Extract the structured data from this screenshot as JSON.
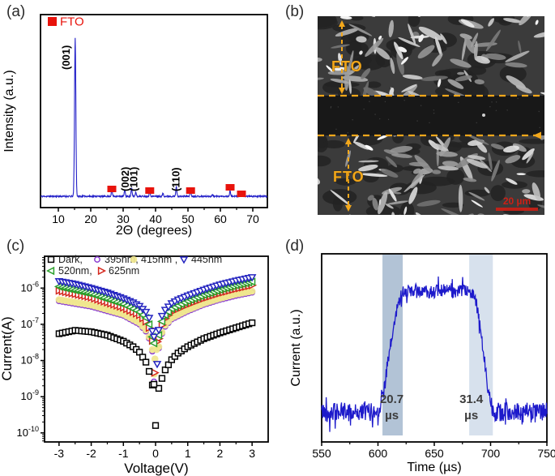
{
  "panels": {
    "a": {
      "label": "(a)"
    },
    "b": {
      "label": "(b)"
    },
    "c": {
      "label": "(c)"
    },
    "d": {
      "label": "(d)"
    }
  },
  "colors": {
    "axis": "#000000",
    "xrd_line": "#2320c8",
    "fto_red": "#e8130c",
    "orange": "#f2a71b",
    "scalebar_red": "#cc2016",
    "trace_blue": "#1d1acb",
    "annotation_text": "#3c3c3c",
    "sem_bg": "#1b1b1b",
    "sem_band": "#3b3b3b"
  },
  "chart_data": [
    {
      "id": "a",
      "type": "line",
      "panel": "(a)",
      "xlabel": "2Θ (degrees)",
      "ylabel": "Intensity (a.u.)",
      "xlim": [
        4.5,
        74.5
      ],
      "xticks": [
        10,
        20,
        30,
        40,
        50,
        60,
        70
      ],
      "xminor_step": 5,
      "legend": [
        {
          "label": "FTO",
          "marker": "square-filled",
          "color": "#e8130c"
        }
      ],
      "peaks": [
        {
          "two_theta": 15.2,
          "rel_intensity": 1.0,
          "label": "(001)",
          "label_dx": -7
        },
        {
          "two_theta": 26.5,
          "rel_intensity": 0.045,
          "phase": "FTO"
        },
        {
          "two_theta": 30.5,
          "rel_intensity": 0.04,
          "label": "(002)",
          "label_dx": 5
        },
        {
          "two_theta": 32.6,
          "rel_intensity": 0.05,
          "label": "(101)",
          "label_dx": 7
        },
        {
          "two_theta": 33.9,
          "rel_intensity": 0.028
        },
        {
          "two_theta": 38.2,
          "rel_intensity": 0.04,
          "phase": "FTO"
        },
        {
          "two_theta": 42.3,
          "rel_intensity": 0.02
        },
        {
          "two_theta": 46.4,
          "rel_intensity": 0.062,
          "label": "(110)",
          "label_dx": 4
        },
        {
          "two_theta": 50.8,
          "rel_intensity": 0.038,
          "phase": "FTO"
        },
        {
          "two_theta": 57.6,
          "rel_intensity": 0.012
        },
        {
          "two_theta": 63.0,
          "rel_intensity": 0.035,
          "phase": "FTO"
        },
        {
          "two_theta": 66.5,
          "rel_intensity": 0.022,
          "phase": "FTO"
        }
      ],
      "fto_markers": [
        {
          "x": 26.5,
          "dy": 2
        },
        {
          "x": 38.2,
          "dy": 4
        },
        {
          "x": 50.8,
          "dy": 4
        },
        {
          "x": 63.0,
          "dy": 0
        },
        {
          "x": 66.5,
          "dy": 8
        }
      ]
    },
    {
      "id": "b",
      "type": "image",
      "panel": "(b)",
      "description": "SEM micrograph of two FTO electrodes separated by a dark channel gap",
      "annotations": {
        "region_labels": [
          "FTO",
          "FTO"
        ],
        "scale_bar": "20 µm"
      }
    },
    {
      "id": "c",
      "type": "scatter",
      "panel": "(c)",
      "xlabel": "Voltage(V)",
      "ylabel": "Current(A)",
      "xlim": [
        -3.45,
        3.5
      ],
      "xticks": [
        -3,
        -2,
        -1,
        0,
        1,
        2,
        3
      ],
      "xminor_step": 0.5,
      "ylog": true,
      "ylim_exp": [
        -10.25,
        -5.12
      ],
      "ytick_exponents": [
        -6,
        -7,
        -8,
        -9,
        -10
      ],
      "legend_rows": [
        [
          {
            "label": "Dark,",
            "marker": "square",
            "color": "#000000"
          },
          {
            "label": "395nm,",
            "marker": "circle",
            "color": "#8b3fd1"
          },
          {
            "label": "415nm ,",
            "marker": "circle-filled",
            "color": "#f0e78e"
          },
          {
            "label": "445nm",
            "marker": "tri-down",
            "color": "#2525c0"
          }
        ],
        [
          {
            "label": "520nm,",
            "marker": "tri-left",
            "color": "#2ca02c"
          },
          {
            "label": "625nm",
            "marker": "tri-right",
            "color": "#d5271d"
          }
        ]
      ],
      "marker_step_v": 0.1,
      "series": [
        {
          "name": "395nm",
          "marker": "circle",
          "color": "#8b3fd1",
          "anchors": [
            [
              -3,
              4.4e-07
            ],
            [
              -2,
              3.1e-07
            ],
            [
              -1,
              1.75e-07
            ],
            [
              -0.5,
              1e-07
            ],
            [
              -0.3,
              6.4e-08
            ],
            [
              -0.2,
              4.1e-08
            ],
            [
              -0.1,
              1.8e-08
            ],
            [
              0.1,
              2.2e-08
            ],
            [
              0.2,
              5.5e-08
            ],
            [
              0.3,
              8.7e-08
            ],
            [
              0.5,
              1.38e-07
            ],
            [
              1,
              2.3e-07
            ],
            [
              1.5,
              3.5e-07
            ],
            [
              2,
              4.8e-07
            ],
            [
              2.5,
              6.2e-07
            ],
            [
              3,
              7.6e-07
            ]
          ],
          "dip_points": [
            [
              -0.05,
              2.6e-09
            ]
          ]
        },
        {
          "name": "415nm",
          "marker": "circle-filled",
          "color": "#f0e78e",
          "anchors": [
            [
              -3,
              4.8e-07
            ],
            [
              -2,
              3.4e-07
            ],
            [
              -1,
              1.9e-07
            ],
            [
              -0.5,
              1.1e-07
            ],
            [
              -0.3,
              7e-08
            ],
            [
              -0.2,
              4.5e-08
            ],
            [
              -0.1,
              2e-08
            ],
            [
              0.1,
              2.4e-08
            ],
            [
              0.2,
              6e-08
            ],
            [
              0.3,
              9.5e-08
            ],
            [
              0.5,
              1.5e-07
            ],
            [
              1,
              2.5e-07
            ],
            [
              1.5,
              3.8e-07
            ],
            [
              2,
              5.2e-07
            ],
            [
              2.5,
              6.8e-07
            ],
            [
              3,
              8.2e-07
            ]
          ],
          "dip_points": [
            [
              -0.04,
              4.2e-09
            ],
            [
              -0.02,
              1.1e-08
            ],
            [
              0.03,
              2e-08
            ]
          ]
        },
        {
          "name": "625nm",
          "marker": "tri-right",
          "color": "#d5271d",
          "anchors": [
            [
              -3,
              8.5e-07
            ],
            [
              -2,
              5.5e-07
            ],
            [
              -1,
              2.9e-07
            ],
            [
              -0.5,
              1.8e-07
            ],
            [
              -0.3,
              1.2e-07
            ],
            [
              -0.2,
              8e-08
            ],
            [
              -0.1,
              3.5e-08
            ],
            [
              0.1,
              4e-08
            ],
            [
              0.2,
              9.5e-08
            ],
            [
              0.3,
              1.45e-07
            ],
            [
              0.5,
              2.2e-07
            ],
            [
              1,
              3.5e-07
            ],
            [
              1.5,
              5.2e-07
            ],
            [
              2,
              7.2e-07
            ],
            [
              2.5,
              9.5e-07
            ],
            [
              3,
              1.2e-06
            ]
          ],
          "dip_points": [
            [
              -0.03,
              4.6e-09
            ],
            [
              0.05,
              3.3e-08
            ]
          ]
        },
        {
          "name": "520nm",
          "marker": "tri-left",
          "color": "#2ca02c",
          "anchors": [
            [
              -3,
              1.1e-06
            ],
            [
              -2,
              7e-07
            ],
            [
              -1,
              3.6e-07
            ],
            [
              -0.5,
              2.2e-07
            ],
            [
              -0.3,
              1.5e-07
            ],
            [
              -0.2,
              1e-07
            ],
            [
              -0.1,
              4.5e-08
            ],
            [
              0.1,
              5e-08
            ],
            [
              0.2,
              1.2e-07
            ],
            [
              0.3,
              1.8e-07
            ],
            [
              0.5,
              2.7e-07
            ],
            [
              1,
              4.4e-07
            ],
            [
              1.5,
              6.5e-07
            ],
            [
              2,
              9e-07
            ],
            [
              2.5,
              1.2e-06
            ],
            [
              3,
              1.5e-06
            ]
          ],
          "dip_points": [
            [
              -0.05,
              3e-08
            ]
          ]
        },
        {
          "name": "445nm",
          "marker": "tri-down",
          "color": "#2525c0",
          "anchors": [
            [
              -3,
              1.55e-06
            ],
            [
              -2.5,
              1.3e-06
            ],
            [
              -2,
              1e-06
            ],
            [
              -1.5,
              7.5e-07
            ],
            [
              -1,
              5.2e-07
            ],
            [
              -0.7,
              4e-07
            ],
            [
              -0.5,
              3.2e-07
            ],
            [
              -0.3,
              2.2e-07
            ],
            [
              -0.2,
              1.5e-07
            ],
            [
              -0.1,
              6.5e-08
            ],
            [
              0.1,
              7e-08
            ],
            [
              0.2,
              1.7e-07
            ],
            [
              0.3,
              2.5e-07
            ],
            [
              0.5,
              3.8e-07
            ],
            [
              0.7,
              4.8e-07
            ],
            [
              1,
              6.2e-07
            ],
            [
              1.5,
              9e-07
            ],
            [
              2,
              1.25e-06
            ],
            [
              2.5,
              1.6e-06
            ],
            [
              3,
              2e-06
            ]
          ],
          "dip_points": [
            [
              -0.05,
              4.5e-08
            ],
            [
              0.05,
              8e-09
            ]
          ]
        },
        {
          "name": "Dark",
          "marker": "square",
          "color": "#000000",
          "anchors": [
            [
              -3,
              5.5e-08
            ],
            [
              -2.5,
              6.8e-08
            ],
            [
              -2,
              6.2e-08
            ],
            [
              -1.5,
              5e-08
            ],
            [
              -1,
              3.4e-08
            ],
            [
              -0.7,
              2.4e-08
            ],
            [
              -0.5,
              1.7e-08
            ],
            [
              -0.3,
              9e-09
            ],
            [
              -0.2,
              5e-09
            ],
            [
              -0.1,
              2.1e-09
            ],
            [
              0.1,
              1.7e-09
            ],
            [
              0.2,
              3.2e-09
            ],
            [
              0.3,
              5.5e-09
            ],
            [
              0.5,
              1.05e-08
            ],
            [
              0.7,
              1.6e-08
            ],
            [
              1,
              2.4e-08
            ],
            [
              1.5,
              4e-08
            ],
            [
              2,
              5.8e-08
            ],
            [
              2.5,
              8e-08
            ],
            [
              3,
              1.1e-07
            ]
          ],
          "dip_points": [
            [
              -0.05,
              2.2e-09
            ],
            [
              0,
              1.6e-10
            ]
          ]
        }
      ]
    },
    {
      "id": "d",
      "type": "line",
      "panel": "(d)",
      "xlabel": "Time (µs)",
      "ylabel": "Current (a.u.)",
      "xlim": [
        550,
        750
      ],
      "xticks": [
        550,
        600,
        650,
        700,
        750
      ],
      "xminor_step": 25,
      "signal": {
        "baseline": 0.16,
        "plateau": 0.8,
        "rise_start": 598,
        "rise_end": 623,
        "fall_start": 683,
        "fall_end": 704,
        "noise_baseline": 0.05,
        "noise_plateau": 0.035,
        "dt": 0.4
      },
      "bands": [
        {
          "t0": 604,
          "t1": 622,
          "value": "20.7",
          "unit": "µs",
          "color": "#a4b8cf",
          "label_dx": -1
        },
        {
          "t0": 681,
          "t1": 702,
          "value": "31.4",
          "unit": "µs",
          "color": "#d0dcea",
          "label_dx": -12
        }
      ],
      "rise_time_label": "20.7 µs",
      "fall_time_label": "31.4 µs"
    }
  ]
}
